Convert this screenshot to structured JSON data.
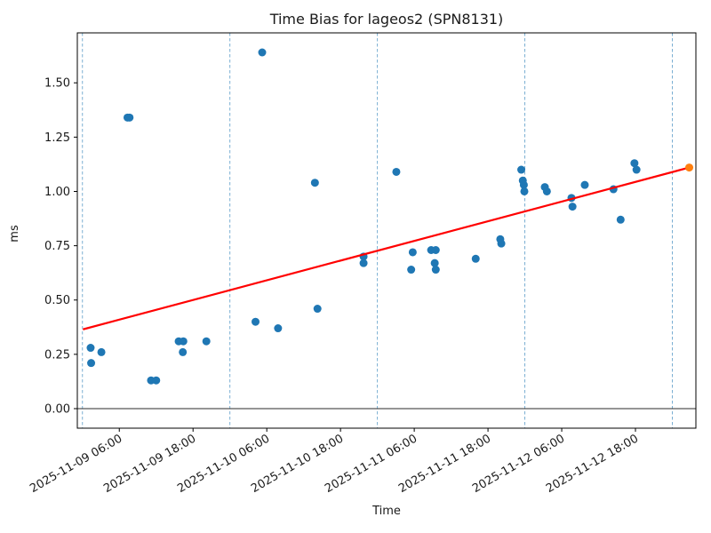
{
  "chart_data": {
    "type": "scatter",
    "title": "Time Bias for lageos2 (SPN8131)",
    "xlabel": "Time",
    "ylabel": "ms",
    "x_range": [
      "2025-11-08 23:10",
      "2025-11-13 03:50"
    ],
    "ylim": [
      -0.09,
      1.73
    ],
    "grid": "vertical-dashed",
    "legend": "none",
    "y_ticks": [
      {
        "label": "0.00",
        "value": 0.0
      },
      {
        "label": "0.25",
        "value": 0.25
      },
      {
        "label": "0.50",
        "value": 0.5
      },
      {
        "label": "0.75",
        "value": 0.75
      },
      {
        "label": "1.00",
        "value": 1.0
      },
      {
        "label": "1.25",
        "value": 1.25
      },
      {
        "label": "1.50",
        "value": 1.5
      }
    ],
    "x_ticks": [
      "2025-11-09 06:00",
      "2025-11-09 18:00",
      "2025-11-10 06:00",
      "2025-11-10 18:00",
      "2025-11-11 06:00",
      "2025-11-11 18:00",
      "2025-11-12 06:00",
      "2025-11-12 18:00"
    ],
    "gridlines_x": [
      "2025-11-09 00:00",
      "2025-11-10 00:00",
      "2025-11-11 00:00",
      "2025-11-12 00:00",
      "2025-11-13 00:00"
    ],
    "zero_line_value": 0.0,
    "colors": {
      "points": "#1f77b4",
      "trend_line": "#ff0000",
      "prediction_point": "#ff7f0e",
      "gridline": "#1f77b4",
      "axis": "#000000"
    },
    "series": [
      {
        "name": "time-bias-observations",
        "type": "scatter",
        "color": "#1f77b4",
        "points": [
          {
            "t": "2025-11-09 01:20",
            "v": 0.28
          },
          {
            "t": "2025-11-09 01:25",
            "v": 0.21
          },
          {
            "t": "2025-11-09 03:05",
            "v": 0.26
          },
          {
            "t": "2025-11-09 07:20",
            "v": 1.34
          },
          {
            "t": "2025-11-09 07:40",
            "v": 1.34
          },
          {
            "t": "2025-11-09 11:10",
            "v": 0.13
          },
          {
            "t": "2025-11-09 12:00",
            "v": 0.13
          },
          {
            "t": "2025-11-09 15:40",
            "v": 0.31
          },
          {
            "t": "2025-11-09 16:25",
            "v": 0.31
          },
          {
            "t": "2025-11-09 16:20",
            "v": 0.26
          },
          {
            "t": "2025-11-09 20:10",
            "v": 0.31
          },
          {
            "t": "2025-11-10 04:10",
            "v": 0.4
          },
          {
            "t": "2025-11-10 05:15",
            "v": 1.64
          },
          {
            "t": "2025-11-10 07:50",
            "v": 0.37
          },
          {
            "t": "2025-11-10 13:50",
            "v": 1.04
          },
          {
            "t": "2025-11-10 14:15",
            "v": 0.46
          },
          {
            "t": "2025-11-10 21:45",
            "v": 0.7
          },
          {
            "t": "2025-11-10 21:45",
            "v": 0.67
          },
          {
            "t": "2025-11-11 03:05",
            "v": 1.09
          },
          {
            "t": "2025-11-11 05:30",
            "v": 0.64
          },
          {
            "t": "2025-11-11 05:45",
            "v": 0.72
          },
          {
            "t": "2025-11-11 08:45",
            "v": 0.73
          },
          {
            "t": "2025-11-11 09:30",
            "v": 0.73
          },
          {
            "t": "2025-11-11 09:20",
            "v": 0.67
          },
          {
            "t": "2025-11-11 09:30",
            "v": 0.64
          },
          {
            "t": "2025-11-11 16:00",
            "v": 0.69
          },
          {
            "t": "2025-11-11 20:00",
            "v": 0.78
          },
          {
            "t": "2025-11-11 20:10",
            "v": 0.76
          },
          {
            "t": "2025-11-11 23:25",
            "v": 1.1
          },
          {
            "t": "2025-11-11 23:40",
            "v": 1.05
          },
          {
            "t": "2025-11-11 23:50",
            "v": 1.03
          },
          {
            "t": "2025-11-11 23:55",
            "v": 1.0
          },
          {
            "t": "2025-11-12 03:15",
            "v": 1.02
          },
          {
            "t": "2025-11-12 03:35",
            "v": 1.0
          },
          {
            "t": "2025-11-12 07:35",
            "v": 0.97
          },
          {
            "t": "2025-11-12 07:45",
            "v": 0.93
          },
          {
            "t": "2025-11-12 09:45",
            "v": 1.03
          },
          {
            "t": "2025-11-12 14:25",
            "v": 1.01
          },
          {
            "t": "2025-11-12 15:35",
            "v": 0.87
          },
          {
            "t": "2025-11-12 17:50",
            "v": 1.13
          },
          {
            "t": "2025-11-12 18:10",
            "v": 1.1
          }
        ]
      },
      {
        "name": "trend-line",
        "type": "line",
        "color": "#ff0000",
        "points": [
          {
            "t": "2025-11-09 00:05",
            "v": 0.365
          },
          {
            "t": "2025-11-13 02:45",
            "v": 1.11
          }
        ]
      },
      {
        "name": "prediction-point",
        "type": "scatter",
        "color": "#ff7f0e",
        "points": [
          {
            "t": "2025-11-13 02:45",
            "v": 1.11
          }
        ]
      }
    ]
  }
}
